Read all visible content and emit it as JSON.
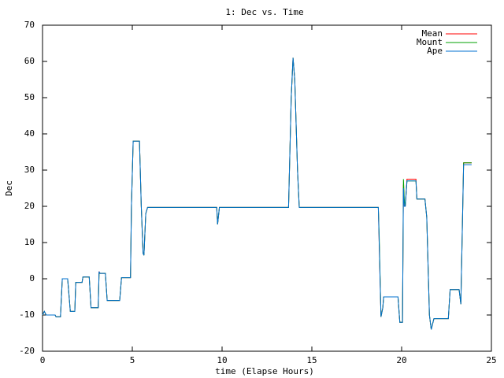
{
  "chart_data": {
    "type": "line",
    "title": "1: Dec vs. Time",
    "x_label": "time (Elapse Hours)",
    "y_label": "Dec",
    "xlim": [
      0,
      25
    ],
    "xticks": [
      0,
      5,
      10,
      15,
      20,
      25
    ],
    "ylim": [
      -20,
      70
    ],
    "yticks": [
      -20,
      -10,
      0,
      10,
      20,
      30,
      40,
      50,
      60,
      70
    ],
    "legend": "top-right",
    "x": [
      0,
      0.1,
      0.2,
      0.7,
      0.75,
      1.0,
      1.1,
      1.4,
      1.55,
      1.8,
      1.85,
      2.2,
      2.25,
      2.6,
      2.7,
      3.1,
      3.15,
      3.2,
      3.5,
      3.6,
      4.3,
      4.4,
      4.9,
      4.95,
      5.05,
      5.4,
      5.5,
      5.6,
      5.65,
      5.75,
      5.85,
      9.7,
      9.75,
      9.85,
      13.7,
      13.85,
      13.95,
      14.05,
      14.2,
      14.3,
      18.7,
      18.75,
      18.85,
      18.95,
      19.0,
      19.8,
      19.9,
      20.05,
      20.1,
      20.15,
      20.2,
      20.3,
      20.8,
      20.85,
      21.3,
      21.4,
      21.55,
      21.65,
      21.8,
      22.6,
      22.7,
      23.2,
      23.3,
      23.45,
      23.9
    ],
    "series": [
      {
        "name": "Mean",
        "color": "#ff0000",
        "values": [
          -10,
          -9,
          -10,
          -10,
          -10.5,
          -10.5,
          0,
          0,
          -9,
          -9,
          -1,
          -1,
          0.5,
          0.5,
          -8,
          -8,
          2,
          1.5,
          1.5,
          -6,
          -6,
          0.3,
          0.3,
          20,
          38,
          38,
          20,
          7,
          6.5,
          18,
          19.7,
          19.7,
          15,
          19.7,
          19.7,
          50,
          61,
          55,
          30,
          19.7,
          19.7,
          10,
          -10.5,
          -8,
          -5,
          -5,
          -12,
          -12,
          26,
          20,
          20,
          27.5,
          27.5,
          22,
          22,
          17,
          -10,
          -14,
          -11,
          -11,
          -3,
          -3,
          -7,
          32,
          32
        ]
      },
      {
        "name": "Mount",
        "color": "#00a000",
        "values": [
          -10,
          -9,
          -10,
          -10,
          -10.5,
          -10.5,
          0,
          0,
          -9,
          -9,
          -1,
          -1,
          0.5,
          0.5,
          -8,
          -8,
          1.5,
          1.5,
          1.5,
          -6,
          -6,
          0.3,
          0.3,
          20,
          38,
          38,
          20,
          7,
          6.5,
          18,
          19.7,
          19.7,
          15,
          19.7,
          19.7,
          50,
          61,
          55,
          30,
          19.7,
          19.7,
          12,
          -10.5,
          -8,
          -5,
          -5,
          -12,
          -12,
          27.5,
          22,
          20,
          27,
          27,
          22,
          22,
          17,
          -10,
          -14,
          -11,
          -11,
          -3,
          -3,
          -7,
          32,
          32
        ]
      },
      {
        "name": "Ape",
        "color": "#0070d0",
        "values": [
          -10,
          -9,
          -10,
          -10,
          -10.5,
          -10.5,
          0,
          0,
          -9,
          -9,
          -1,
          -1,
          0.5,
          0.5,
          -8,
          -8,
          2,
          1.5,
          1.5,
          -6,
          -6,
          0.3,
          0.3,
          20,
          38,
          38,
          20,
          7,
          6.5,
          18,
          19.7,
          19.7,
          15,
          19.7,
          19.7,
          50,
          61,
          55,
          30,
          19.7,
          19.7,
          10,
          -10.5,
          -8,
          -5,
          -5,
          -12,
          -12,
          25,
          20,
          20,
          27,
          27,
          22,
          22,
          17,
          -10,
          -14,
          -11,
          -11,
          -3,
          -3,
          -7,
          31.5,
          31.5
        ]
      }
    ]
  }
}
